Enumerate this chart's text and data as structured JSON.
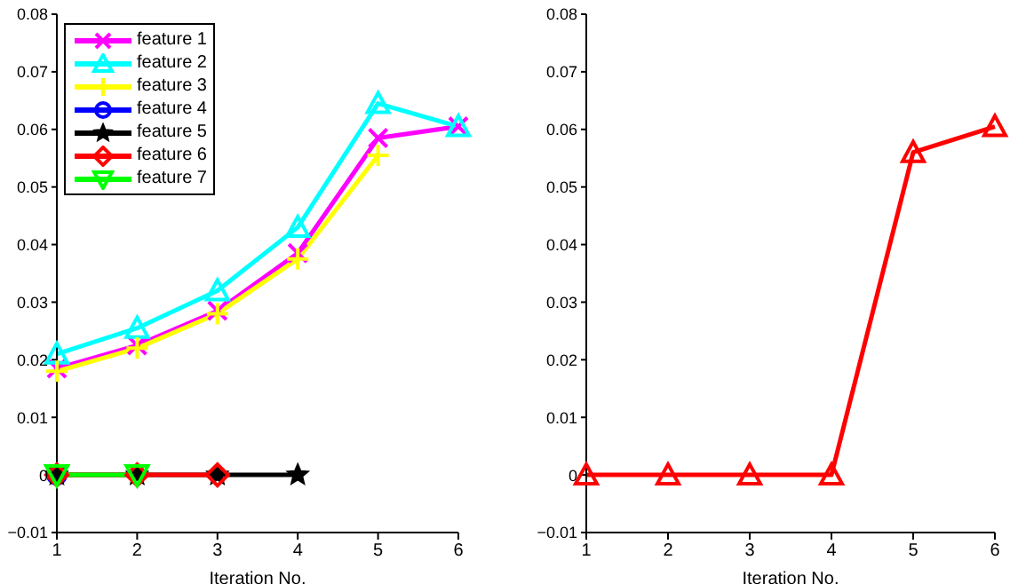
{
  "chart_data": [
    {
      "type": "line",
      "xlabel": "Iteration No.",
      "x": [
        1,
        2,
        3,
        4,
        5,
        6
      ],
      "xlim": [
        1,
        6
      ],
      "xticks": [
        1,
        2,
        3,
        4,
        5,
        6
      ],
      "ylim": [
        -0.01,
        0.08
      ],
      "yticks": [
        {
          "value": -0.01,
          "label": "−0.01"
        },
        0,
        0.01,
        0.02,
        0.03,
        0.04,
        0.05,
        0.06,
        0.07,
        0.08
      ],
      "grid": false,
      "legend": "top left",
      "line_style": "solid",
      "series": [
        {
          "name": "feature 1",
          "color": "#ff00ff",
          "marker": "cross",
          "values": [
            0.0185,
            0.0225,
            0.0285,
            0.0385,
            0.0585,
            0.0605
          ]
        },
        {
          "name": "feature 2",
          "color": "#00ffff",
          "marker": "triangle",
          "values": [
            0.021,
            0.0255,
            0.032,
            0.043,
            0.0645,
            0.0605
          ]
        },
        {
          "name": "feature 3",
          "color": "#ffff00",
          "marker": "plus",
          "values": [
            0.018,
            0.022,
            0.028,
            0.0375,
            0.0555,
            null
          ]
        },
        {
          "name": "feature 4",
          "color": "#0000ff",
          "marker": "circle",
          "values": [
            0,
            null,
            null,
            null,
            null,
            null
          ]
        },
        {
          "name": "feature 5",
          "color": "#000000",
          "marker": "star",
          "values": [
            0,
            0,
            0,
            0,
            null,
            null
          ]
        },
        {
          "name": "feature 6",
          "color": "#ff0000",
          "marker": "diamond",
          "values": [
            0,
            0,
            0,
            null,
            null,
            null
          ]
        },
        {
          "name": "feature 7",
          "color": "#00ff00",
          "marker": "triangle-down",
          "values": [
            0,
            0,
            null,
            null,
            null,
            null
          ]
        }
      ]
    },
    {
      "type": "line",
      "xlabel": "Iteration No.",
      "x": [
        1,
        2,
        3,
        4,
        5,
        6
      ],
      "xlim": [
        1,
        6
      ],
      "xticks": [
        1,
        2,
        3,
        4,
        5,
        6
      ],
      "ylim": [
        -0.01,
        0.08
      ],
      "yticks": [
        {
          "value": -0.01,
          "label": "−0.01"
        },
        0,
        0.01,
        0.02,
        0.03,
        0.04,
        0.05,
        0.06,
        0.07,
        0.08
      ],
      "grid": false,
      "legend": false,
      "line_style": "solid",
      "series": [
        {
          "color": "#ff0000",
          "marker": "triangle",
          "values": [
            0,
            0,
            0,
            0,
            0.056,
            0.0605
          ]
        }
      ]
    }
  ]
}
